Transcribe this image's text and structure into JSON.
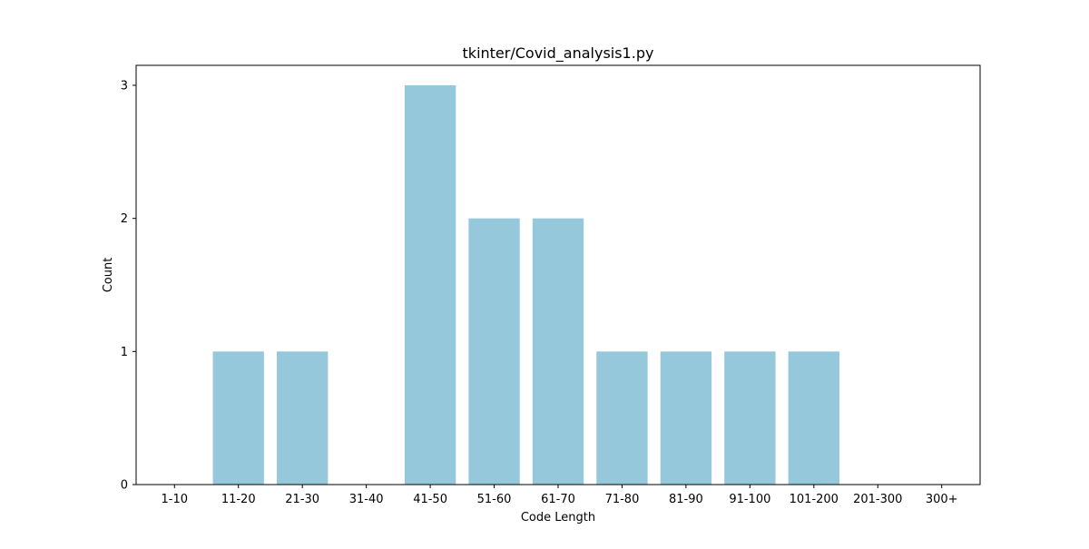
{
  "chart_data": {
    "type": "bar",
    "title": "tkinter/Covid_analysis1.py",
    "xlabel": "Code Length",
    "ylabel": "Count",
    "categories": [
      "1-10",
      "11-20",
      "21-30",
      "31-40",
      "41-50",
      "51-60",
      "61-70",
      "71-80",
      "81-90",
      "91-100",
      "101-200",
      "201-300",
      "300+"
    ],
    "values": [
      0,
      1,
      1,
      0,
      3,
      2,
      2,
      1,
      1,
      1,
      1,
      0,
      0
    ],
    "yticks": [
      "0",
      "1",
      "2",
      "3"
    ],
    "ylim": [
      0,
      3.15
    ],
    "grid": false,
    "legend": "none",
    "colors": {
      "bar": "#96c8dc",
      "axis": "#000000",
      "background": "#ffffff"
    }
  }
}
